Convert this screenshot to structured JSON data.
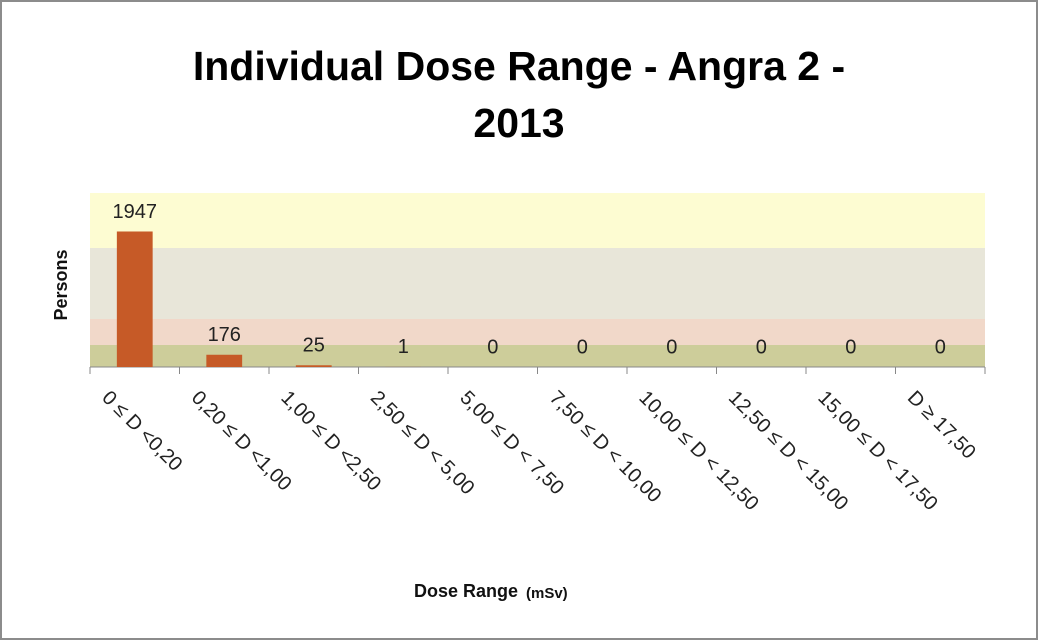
{
  "chart_data": {
    "type": "bar",
    "title": "Individual Dose Range - Angra 2 - 2013",
    "y_label": "Persons",
    "x_label": "Dose Range",
    "x_label_unit": "(mSv)",
    "categories": [
      "0 ≤ D <0,20",
      "0,20 ≤ D <1,00",
      "1,00 ≤ D <2,50",
      "2,50 ≤ D < 5,00",
      "5,00 ≤ D < 7,50",
      "7,50 ≤ D < 10,00",
      "10,00 ≤ D < 12,50",
      "12,50 ≤ D < 15,00",
      "15,00 ≤ D < 17,50",
      "D ≥ 17,50"
    ],
    "values": [
      1947,
      176,
      25,
      1,
      0,
      0,
      0,
      0,
      0,
      0
    ],
    "color": "#c65a27",
    "ylim": [
      0,
      2500
    ]
  }
}
